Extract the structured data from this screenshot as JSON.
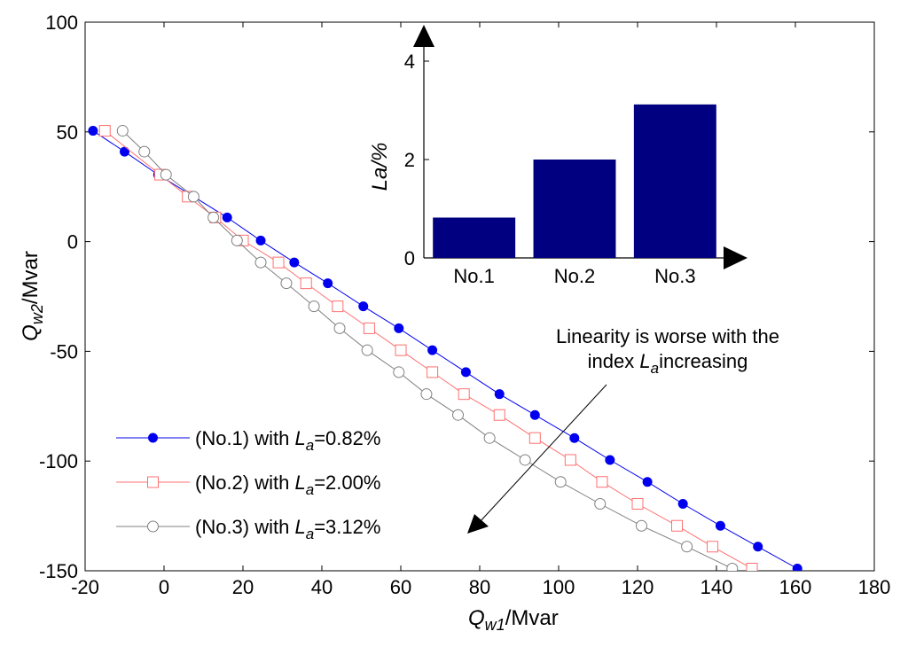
{
  "chart_data": [
    {
      "type": "line",
      "xlabel": {
        "main": "Q",
        "sub": "w1",
        "rest": "/Mvar"
      },
      "ylabel": {
        "main": "Q",
        "sub": "w2",
        "rest": "/Mvar"
      },
      "xlim": [
        -20,
        180
      ],
      "ylim": [
        -150,
        100
      ],
      "xticks": [
        "-20",
        "0",
        "20",
        "40",
        "60",
        "80",
        "100",
        "120",
        "140",
        "160",
        "180"
      ],
      "yticks": [
        "100",
        "50",
        "0",
        "-50",
        "-100",
        "-150"
      ],
      "grid": false,
      "legend_position": "bottom-left",
      "annotation": {
        "line1": "Linearity is worse with the",
        "line2_prefix": "index ",
        "line2_var": "L",
        "line2_sub": "a",
        "line2_suffix": "increasing"
      },
      "series": [
        {
          "name": "(No.1) with L_a=0.82%",
          "legend": {
            "prefix": "(No.1) with ",
            "var": "L",
            "sub": "a",
            "suffix": "=0.82%"
          },
          "color": "#0000ee",
          "marker": "filled-circle",
          "x": [
            -18,
            -10,
            -1.5,
            7.5,
            16,
            24.5,
            33,
            41.5,
            50.5,
            59.5,
            68,
            76.5,
            85,
            94,
            104,
            113,
            122.5,
            131.5,
            141,
            150.5,
            160.5
          ],
          "y": [
            50.5,
            41,
            30.5,
            20.5,
            11,
            0.5,
            -9.5,
            -19,
            -29.5,
            -39.5,
            -49.5,
            -59.5,
            -69.5,
            -79,
            -89.5,
            -99.5,
            -109.5,
            -119.5,
            -129.5,
            -139,
            -149
          ]
        },
        {
          "name": "(No.2) with L_a=2.00%",
          "legend": {
            "prefix": "(No.2) with ",
            "var": "L",
            "sub": "a",
            "suffix": "=2.00%"
          },
          "color": "#ff7070",
          "marker": "open-square",
          "x": [
            -15,
            -1,
            6,
            13,
            20,
            29,
            36,
            44,
            52,
            60,
            68,
            76,
            85,
            94,
            103,
            111,
            120,
            130,
            139,
            149
          ],
          "y": [
            50.5,
            30.5,
            20.5,
            11,
            0.5,
            -9.5,
            -19,
            -29.5,
            -39.5,
            -49.5,
            -59.5,
            -69.5,
            -79,
            -89.5,
            -99.5,
            -109.5,
            -119.5,
            -129.5,
            -139,
            -149
          ]
        },
        {
          "name": "(No.3) with L_a=3.12%",
          "legend": {
            "prefix": "(No.3) with ",
            "var": "L",
            "sub": "a",
            "suffix": "=3.12%"
          },
          "color": "#808080",
          "marker": "open-circle",
          "x": [
            -10.5,
            -5,
            0.5,
            7.5,
            12.5,
            18.5,
            24.5,
            31,
            38,
            44.5,
            51.5,
            59.5,
            66.5,
            74.5,
            82.5,
            91.5,
            100.5,
            110.5,
            121,
            132.5,
            144
          ],
          "y": [
            50.5,
            41,
            30.5,
            20.5,
            11,
            0.5,
            -9.5,
            -19,
            -29.5,
            -39.5,
            -49.5,
            -59.5,
            -69.5,
            -79,
            -89.5,
            -99.5,
            -109.5,
            -119.5,
            -129.5,
            -139,
            -149
          ]
        }
      ]
    },
    {
      "type": "bar",
      "inset": true,
      "categories": [
        "No.1",
        "No.2",
        "No.3"
      ],
      "values": [
        0.82,
        2.0,
        3.12
      ],
      "color": "#000080",
      "ylabel": "La/%",
      "ylim": [
        0,
        4.4
      ],
      "yticks": [
        "0",
        "2",
        "4"
      ],
      "grid": false
    }
  ]
}
